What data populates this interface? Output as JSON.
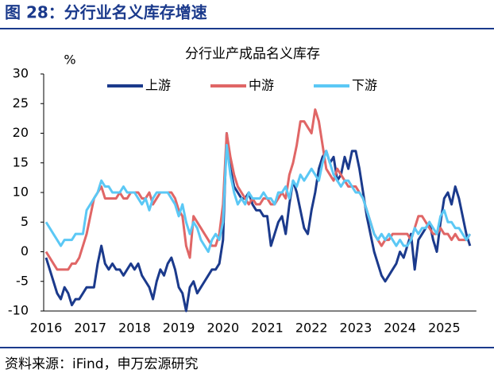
{
  "figure_title": "图 28：分行业名义库存增速",
  "source": "资料来源：iFind，申万宏源研究",
  "chart_data": {
    "type": "line",
    "title": "分行业产成品名义库存",
    "ylabel": "%",
    "categories": [
      "2016",
      null,
      null,
      null,
      null,
      null,
      null,
      null,
      null,
      null,
      null,
      null,
      "2017",
      null,
      null,
      null,
      null,
      null,
      null,
      null,
      null,
      null,
      null,
      null,
      "2018",
      null,
      null,
      null,
      null,
      null,
      null,
      null,
      null,
      null,
      null,
      null,
      "2019",
      null,
      null,
      null,
      null,
      null,
      null,
      null,
      null,
      null,
      null,
      null,
      "2020",
      null,
      null,
      null,
      null,
      null,
      null,
      null,
      null,
      null,
      null,
      null,
      "2021",
      null,
      null,
      null,
      null,
      null,
      null,
      null,
      null,
      null,
      null,
      null,
      "2022",
      null,
      null,
      null,
      null,
      null,
      null,
      null,
      null,
      null,
      null,
      null,
      "2023",
      null,
      null,
      null,
      null,
      null,
      null,
      null,
      null,
      null,
      null,
      null,
      "2024",
      null,
      null,
      null,
      null,
      null,
      null,
      null,
      null,
      null,
      null,
      null,
      "2025",
      null,
      null,
      null,
      null,
      null,
      null,
      null
    ],
    "series": [
      {
        "name": "上游",
        "color": "#1b3a8c",
        "values": [
          -1,
          -3,
          -5,
          -7,
          -8,
          -6,
          -7,
          -9,
          -8,
          -8,
          -7,
          -6,
          -6,
          -6,
          -2,
          1,
          -2,
          -3,
          -2,
          -3,
          -3,
          -4,
          -3,
          -2,
          -3,
          -2,
          -4,
          -5,
          -6,
          -8,
          -5,
          -3,
          -4,
          -2,
          -1,
          -3,
          -6,
          -7,
          -10,
          -6,
          -5,
          -7,
          -6,
          -5,
          -4,
          -3,
          -3,
          -2,
          2,
          20,
          14,
          11,
          10,
          9,
          9,
          10,
          8,
          7,
          7,
          6,
          6,
          1,
          3,
          5,
          6,
          3,
          8,
          12,
          10,
          7,
          4,
          3,
          7,
          10,
          14,
          16,
          17,
          15,
          16,
          12,
          13,
          16,
          14,
          17,
          17,
          14,
          10,
          6,
          3,
          0,
          -2,
          -4,
          -5,
          -4,
          -3,
          -2,
          0,
          -1,
          1,
          3,
          -3,
          2,
          3,
          4,
          5,
          2,
          0,
          5,
          9,
          10,
          8,
          11,
          9,
          6,
          3,
          1
        ]
      },
      {
        "name": "中游",
        "color": "#e06666",
        "values": [
          0,
          -1,
          -2,
          -3,
          -3,
          -3,
          -3,
          -2,
          -2,
          -1,
          1,
          3,
          6,
          9,
          10,
          11,
          9,
          9,
          9,
          9,
          10,
          9,
          9,
          10,
          10,
          10,
          9,
          9,
          10,
          8,
          9,
          10,
          10,
          10,
          10,
          9,
          7,
          6,
          1,
          -1,
          6,
          5,
          4,
          3,
          2,
          1,
          1,
          3,
          8,
          20,
          16,
          13,
          11,
          10,
          9,
          8,
          9,
          8,
          8,
          9,
          9,
          8,
          8,
          9,
          10,
          9,
          13,
          15,
          18,
          22,
          22,
          21,
          20,
          24,
          22,
          18,
          14,
          13,
          12,
          14,
          13,
          12,
          11,
          11,
          11,
          10,
          9,
          7,
          5,
          3,
          2,
          1,
          2,
          2,
          3,
          3,
          3,
          3,
          3,
          2,
          4,
          6,
          6,
          5,
          4,
          3,
          3,
          4,
          3,
          3,
          2,
          3,
          2,
          2,
          2,
          3
        ]
      },
      {
        "name": "下游",
        "color": "#5bc8f5",
        "values": [
          5,
          4,
          3,
          2,
          1,
          2,
          2,
          2,
          3,
          3,
          3,
          7,
          8,
          9,
          10,
          12,
          11,
          11,
          10,
          10,
          10,
          11,
          10,
          10,
          10,
          9,
          8,
          9,
          7,
          9,
          10,
          10,
          10,
          10,
          9,
          8,
          6,
          8,
          5,
          3,
          5,
          4,
          2,
          1,
          0,
          2,
          3,
          2,
          5,
          18,
          13,
          10,
          8,
          9,
          8,
          10,
          9,
          9,
          9,
          10,
          9,
          9,
          8,
          10,
          10,
          11,
          9,
          12,
          11,
          13,
          12,
          13,
          14,
          13,
          12,
          15,
          17,
          15,
          13,
          12,
          11,
          12,
          12,
          11,
          10,
          10,
          9,
          7,
          5,
          3,
          2,
          3,
          2,
          3,
          2,
          1,
          2,
          1,
          1,
          2,
          4,
          3,
          4,
          4,
          5,
          4,
          3,
          6,
          7,
          5,
          5,
          4,
          4,
          3,
          2,
          3
        ]
      }
    ],
    "ylim": [
      -10,
      30
    ],
    "yticks": [
      -10,
      -5,
      0,
      5,
      10,
      15,
      20,
      25,
      30
    ],
    "grid": false,
    "legend": "top"
  }
}
